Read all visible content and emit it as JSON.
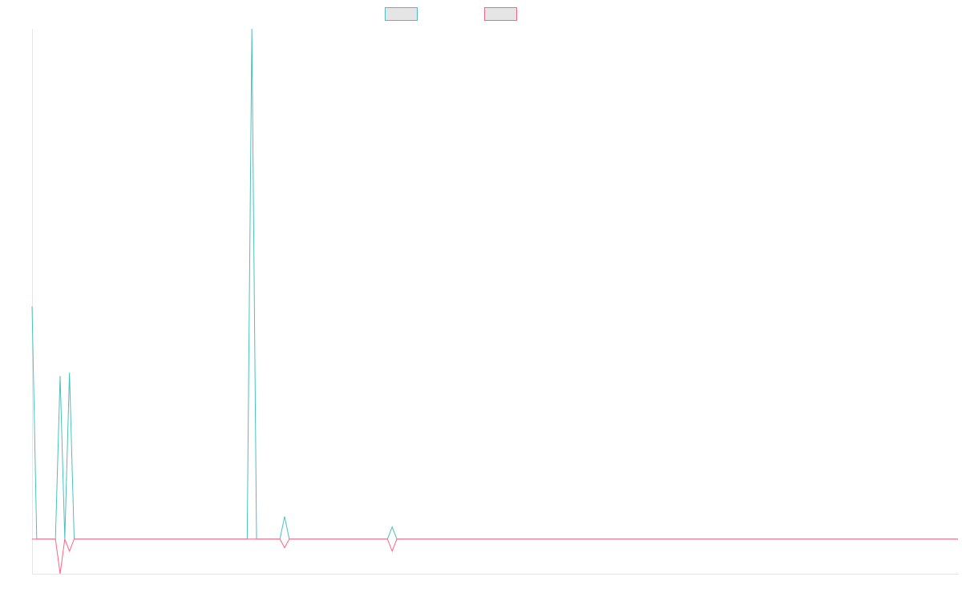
{
  "chart_data": {
    "type": "line",
    "title": "",
    "xlabel": "",
    "ylabel": "",
    "grid": false,
    "legend": {
      "position": "top-center"
    },
    "x_count": 199,
    "ylim": [
      -10,
      147
    ],
    "series": [
      {
        "color": "#4bc0c0",
        "fill": "#e5e5e5",
        "points": [
          [
            0,
            67
          ],
          [
            1,
            0
          ],
          [
            5,
            0
          ],
          [
            6,
            47
          ],
          [
            7,
            0
          ],
          [
            8,
            48
          ],
          [
            9,
            0
          ],
          [
            46,
            0
          ],
          [
            47,
            147
          ],
          [
            48,
            0
          ],
          [
            53,
            0
          ],
          [
            54,
            6.5
          ],
          [
            55,
            0
          ],
          [
            76,
            0
          ],
          [
            77,
            3.5
          ],
          [
            78,
            0
          ],
          [
            198,
            0
          ]
        ]
      },
      {
        "color": "#ff6384",
        "fill": "#e5e5e5",
        "points": [
          [
            0,
            0
          ],
          [
            5,
            0
          ],
          [
            6,
            -10
          ],
          [
            7,
            0
          ],
          [
            8,
            -3.5
          ],
          [
            9,
            0
          ],
          [
            53,
            0
          ],
          [
            54,
            -2.5
          ],
          [
            55,
            0
          ],
          [
            76,
            0
          ],
          [
            77,
            -3.5
          ],
          [
            78,
            0
          ],
          [
            198,
            0
          ]
        ]
      }
    ]
  }
}
